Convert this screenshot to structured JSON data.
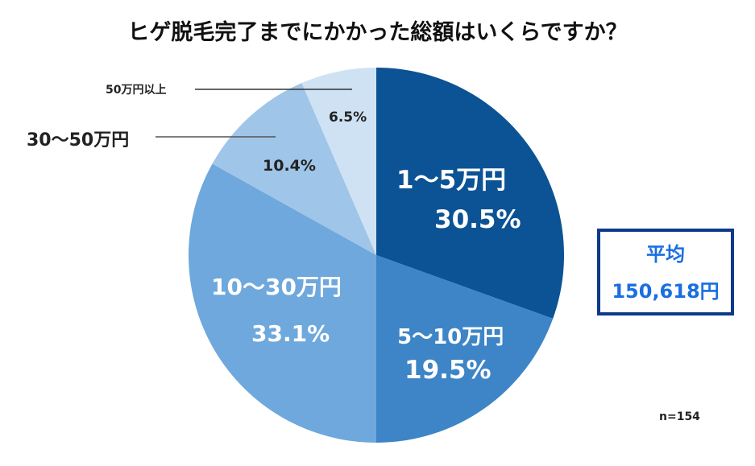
{
  "title": "ヒゲ脱毛完了までにかかった総額はいくらですか？",
  "chart_data": {
    "type": "pie",
    "title": "ヒゲ脱毛完了までにかかった総額はいくらですか？",
    "categories": [
      "1〜5万円",
      "5〜10万円",
      "10〜30万円",
      "30〜50万円",
      "50万円以上"
    ],
    "values": [
      30.5,
      19.5,
      33.1,
      10.4,
      6.5
    ],
    "unit": "%",
    "colors": [
      "#0B5394",
      "#3D85C6",
      "#6FA8DC",
      "#9FC5E8",
      "#CFE2F3"
    ],
    "start_angle": "12 o'clock, clockwise",
    "sample_size": "n=154",
    "annotation": {
      "label": "平均",
      "value": "150,618円"
    }
  },
  "slices": [
    {
      "name": "1〜5万円",
      "pct": "30.5%"
    },
    {
      "name": "5〜10万円",
      "pct": "19.5%"
    },
    {
      "name": "10〜30万円",
      "pct": "33.1%"
    },
    {
      "name": "30〜50万円",
      "pct": "10.4%"
    },
    {
      "name": "50万円以上",
      "pct": "6.5%"
    }
  ],
  "average": {
    "label": "平均",
    "value": "150,618円"
  },
  "sample": "n=154"
}
